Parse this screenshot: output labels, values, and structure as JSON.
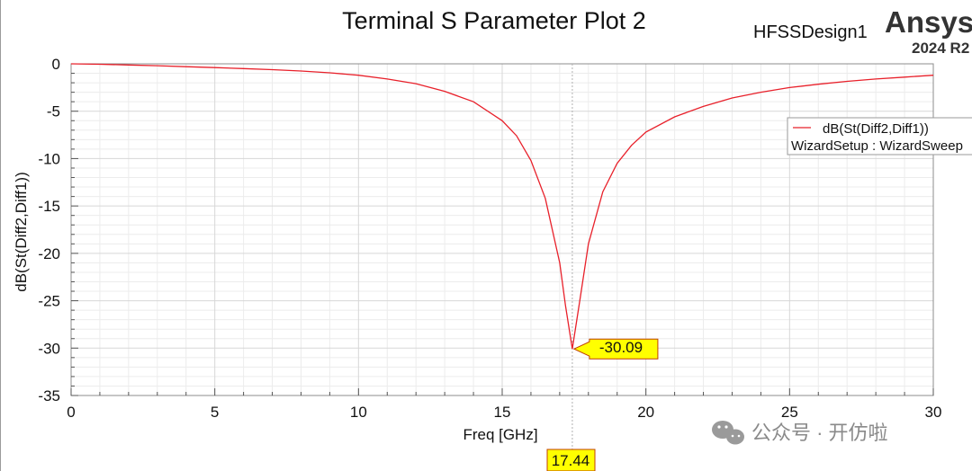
{
  "header": {
    "title": "Terminal S Parameter Plot 2",
    "design_name": "HFSSDesign1",
    "brand": "Ansys",
    "version": "2024 R2"
  },
  "legend": {
    "series_label": "dB(St(Diff2,Diff1))",
    "setup_label": "WizardSetup : WizardSweep"
  },
  "marker": {
    "value_label": "-30.09",
    "freq_label": "17.44"
  },
  "watermark": {
    "text": "公众号 · 开仿啦",
    "icon": "wechat-icon"
  },
  "colors": {
    "trace": "#e8202a",
    "marker_fill": "#ffff00",
    "grid": "#d7d7d7",
    "marker_line": "#b0b0b0"
  },
  "chart_data": {
    "type": "line",
    "title": "Terminal S Parameter Plot 2",
    "xlabel": "Freq [GHz]",
    "ylabel": "dB(St(Diff2,Diff1))",
    "xlim": [
      0,
      30
    ],
    "ylim": [
      -35,
      0
    ],
    "x_ticks": [
      0,
      5,
      10,
      15,
      20,
      25,
      30
    ],
    "y_ticks": [
      0,
      -5,
      -10,
      -15,
      -20,
      -25,
      -30,
      -35
    ],
    "grid": true,
    "legend_position": "right",
    "series": [
      {
        "name": "dB(St(Diff2,Diff1))",
        "x": [
          0,
          1,
          2,
          3,
          4,
          5,
          6,
          7,
          8,
          9,
          10,
          11,
          12,
          13,
          14,
          15,
          15.5,
          16,
          16.5,
          17,
          17.2,
          17.44,
          17.7,
          18,
          18.5,
          19,
          19.5,
          20,
          21,
          22,
          23,
          24,
          25,
          26,
          27,
          28,
          29,
          30
        ],
        "y": [
          0,
          -0.05,
          -0.12,
          -0.2,
          -0.3,
          -0.4,
          -0.5,
          -0.62,
          -0.76,
          -0.95,
          -1.2,
          -1.6,
          -2.1,
          -2.9,
          -4.0,
          -6.0,
          -7.6,
          -10.2,
          -14.2,
          -21.0,
          -25.5,
          -30.09,
          -25.0,
          -19.0,
          -13.5,
          -10.5,
          -8.6,
          -7.2,
          -5.6,
          -4.5,
          -3.6,
          -3.0,
          -2.5,
          -2.15,
          -1.85,
          -1.6,
          -1.4,
          -1.2
        ]
      }
    ],
    "markers": [
      {
        "x": 17.44,
        "y": -30.09,
        "label": "-30.09",
        "x_label": "17.44"
      }
    ]
  }
}
